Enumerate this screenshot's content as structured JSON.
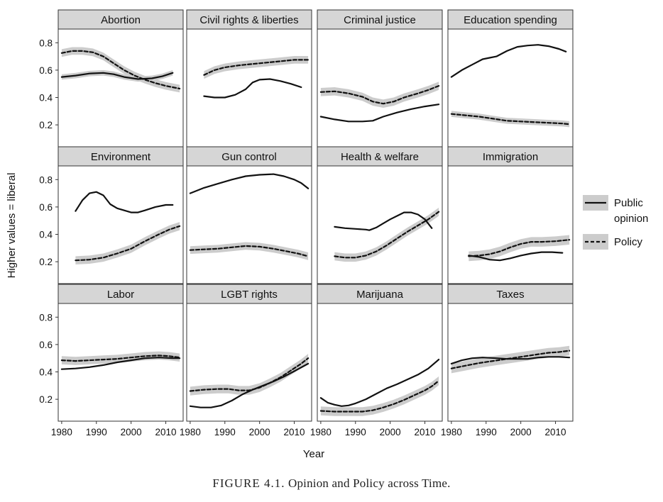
{
  "caption": {
    "label": "FIGURE 4.1.",
    "text": "Opinion and Policy across Time."
  },
  "chart_data": {
    "type": "line",
    "xlabel": "Year",
    "ylabel": "Higher values = liberal",
    "xlim": [
      1979,
      2015
    ],
    "ylim": [
      0.04,
      0.9
    ],
    "xticks": [
      1980,
      1990,
      2000,
      2010
    ],
    "yticks": [
      0.2,
      0.4,
      0.6,
      0.8
    ],
    "legend": {
      "position": "right",
      "entries": [
        {
          "key": "opinion",
          "label_lines": [
            "Public",
            "opinion"
          ],
          "style": "solid"
        },
        {
          "key": "policy",
          "label_lines": [
            "Policy"
          ],
          "style": "dashed"
        }
      ]
    },
    "colors": {
      "line": "#111111",
      "ribbon": "#cccccc",
      "strip": "#d6d6d6",
      "panel_border": "#333333"
    },
    "panels": [
      {
        "title": "Abortion",
        "opinion": [
          [
            1980,
            0.55
          ],
          [
            1984,
            0.56
          ],
          [
            1988,
            0.575
          ],
          [
            1992,
            0.58
          ],
          [
            1995,
            0.57
          ],
          [
            1998,
            0.55
          ],
          [
            2002,
            0.535
          ],
          [
            2006,
            0.54
          ],
          [
            2009,
            0.555
          ],
          [
            2012,
            0.58
          ]
        ],
        "opinion_band": 0.02,
        "policy": [
          [
            1980,
            0.725
          ],
          [
            1983,
            0.74
          ],
          [
            1986,
            0.74
          ],
          [
            1989,
            0.73
          ],
          [
            1992,
            0.7
          ],
          [
            1995,
            0.65
          ],
          [
            1998,
            0.6
          ],
          [
            2001,
            0.56
          ],
          [
            2004,
            0.53
          ],
          [
            2007,
            0.505
          ],
          [
            2010,
            0.485
          ],
          [
            2014,
            0.465
          ]
        ],
        "policy_band": 0.028
      },
      {
        "title": "Civil rights & liberties",
        "opinion": [
          [
            1984,
            0.41
          ],
          [
            1987,
            0.4
          ],
          [
            1990,
            0.4
          ],
          [
            1993,
            0.42
          ],
          [
            1996,
            0.46
          ],
          [
            1998,
            0.51
          ],
          [
            2000,
            0.53
          ],
          [
            2003,
            0.535
          ],
          [
            2006,
            0.52
          ],
          [
            2009,
            0.5
          ],
          [
            2012,
            0.475
          ]
        ],
        "opinion_band": 0.0,
        "policy": [
          [
            1984,
            0.565
          ],
          [
            1987,
            0.6
          ],
          [
            1990,
            0.62
          ],
          [
            1994,
            0.635
          ],
          [
            1998,
            0.645
          ],
          [
            2002,
            0.655
          ],
          [
            2006,
            0.665
          ],
          [
            2010,
            0.675
          ],
          [
            2014,
            0.675
          ]
        ],
        "policy_band": 0.028
      },
      {
        "title": "Criminal justice",
        "opinion": [
          [
            1980,
            0.26
          ],
          [
            1984,
            0.24
          ],
          [
            1988,
            0.225
          ],
          [
            1992,
            0.225
          ],
          [
            1995,
            0.23
          ],
          [
            1998,
            0.26
          ],
          [
            2002,
            0.29
          ],
          [
            2006,
            0.315
          ],
          [
            2010,
            0.335
          ],
          [
            2014,
            0.35
          ]
        ],
        "opinion_band": 0.0,
        "policy": [
          [
            1980,
            0.44
          ],
          [
            1984,
            0.445
          ],
          [
            1988,
            0.43
          ],
          [
            1992,
            0.405
          ],
          [
            1995,
            0.37
          ],
          [
            1998,
            0.355
          ],
          [
            2001,
            0.37
          ],
          [
            2004,
            0.4
          ],
          [
            2008,
            0.43
          ],
          [
            2011,
            0.455
          ],
          [
            2014,
            0.485
          ]
        ],
        "policy_band": 0.03
      },
      {
        "title": "Education spending",
        "opinion": [
          [
            1980,
            0.55
          ],
          [
            1983,
            0.6
          ],
          [
            1986,
            0.64
          ],
          [
            1989,
            0.68
          ],
          [
            1991,
            0.69
          ],
          [
            1993,
            0.7
          ],
          [
            1996,
            0.74
          ],
          [
            1999,
            0.77
          ],
          [
            2002,
            0.78
          ],
          [
            2005,
            0.785
          ],
          [
            2008,
            0.775
          ],
          [
            2011,
            0.755
          ],
          [
            2013,
            0.735
          ]
        ],
        "opinion_band": 0.0,
        "policy": [
          [
            1980,
            0.28
          ],
          [
            1984,
            0.27
          ],
          [
            1988,
            0.26
          ],
          [
            1992,
            0.245
          ],
          [
            1996,
            0.23
          ],
          [
            2000,
            0.225
          ],
          [
            2004,
            0.22
          ],
          [
            2008,
            0.215
          ],
          [
            2012,
            0.21
          ],
          [
            2014,
            0.205
          ]
        ],
        "policy_band": 0.022
      },
      {
        "title": "Environment",
        "opinion": [
          [
            1984,
            0.57
          ],
          [
            1986,
            0.65
          ],
          [
            1988,
            0.7
          ],
          [
            1990,
            0.71
          ],
          [
            1992,
            0.685
          ],
          [
            1994,
            0.62
          ],
          [
            1996,
            0.59
          ],
          [
            1998,
            0.575
          ],
          [
            2000,
            0.56
          ],
          [
            2002,
            0.56
          ],
          [
            2004,
            0.575
          ],
          [
            2007,
            0.6
          ],
          [
            2010,
            0.615
          ],
          [
            2012,
            0.615
          ]
        ],
        "opinion_band": 0.0,
        "policy": [
          [
            1984,
            0.21
          ],
          [
            1988,
            0.215
          ],
          [
            1992,
            0.23
          ],
          [
            1996,
            0.26
          ],
          [
            2000,
            0.295
          ],
          [
            2004,
            0.35
          ],
          [
            2008,
            0.4
          ],
          [
            2011,
            0.435
          ],
          [
            2014,
            0.46
          ]
        ],
        "policy_band": 0.03
      },
      {
        "title": "Gun control",
        "opinion": [
          [
            1980,
            0.7
          ],
          [
            1984,
            0.74
          ],
          [
            1988,
            0.77
          ],
          [
            1992,
            0.8
          ],
          [
            1996,
            0.825
          ],
          [
            2000,
            0.835
          ],
          [
            2004,
            0.84
          ],
          [
            2007,
            0.825
          ],
          [
            2010,
            0.8
          ],
          [
            2012,
            0.775
          ],
          [
            2014,
            0.735
          ]
        ],
        "opinion_band": 0.0,
        "policy": [
          [
            1980,
            0.285
          ],
          [
            1984,
            0.29
          ],
          [
            1988,
            0.295
          ],
          [
            1992,
            0.305
          ],
          [
            1996,
            0.315
          ],
          [
            2000,
            0.31
          ],
          [
            2004,
            0.295
          ],
          [
            2008,
            0.275
          ],
          [
            2011,
            0.26
          ],
          [
            2014,
            0.24
          ]
        ],
        "policy_band": 0.028
      },
      {
        "title": "Health & welfare",
        "opinion": [
          [
            1984,
            0.455
          ],
          [
            1987,
            0.445
          ],
          [
            1990,
            0.44
          ],
          [
            1993,
            0.435
          ],
          [
            1994,
            0.43
          ],
          [
            1996,
            0.45
          ],
          [
            1998,
            0.48
          ],
          [
            2000,
            0.51
          ],
          [
            2002,
            0.535
          ],
          [
            2004,
            0.56
          ],
          [
            2006,
            0.56
          ],
          [
            2008,
            0.545
          ],
          [
            2010,
            0.51
          ],
          [
            2012,
            0.445
          ]
        ],
        "opinion_band": 0.0,
        "policy": [
          [
            1984,
            0.24
          ],
          [
            1987,
            0.23
          ],
          [
            1990,
            0.23
          ],
          [
            1993,
            0.245
          ],
          [
            1996,
            0.275
          ],
          [
            1999,
            0.32
          ],
          [
            2002,
            0.37
          ],
          [
            2005,
            0.42
          ],
          [
            2008,
            0.465
          ],
          [
            2011,
            0.51
          ],
          [
            2014,
            0.565
          ]
        ],
        "policy_band": 0.03
      },
      {
        "title": "Immigration",
        "opinion": [
          [
            1985,
            0.245
          ],
          [
            1988,
            0.235
          ],
          [
            1991,
            0.215
          ],
          [
            1994,
            0.21
          ],
          [
            1997,
            0.225
          ],
          [
            2000,
            0.245
          ],
          [
            2003,
            0.26
          ],
          [
            2006,
            0.27
          ],
          [
            2009,
            0.27
          ],
          [
            2012,
            0.265
          ]
        ],
        "opinion_band": 0.0,
        "policy": [
          [
            1985,
            0.24
          ],
          [
            1988,
            0.245
          ],
          [
            1991,
            0.255
          ],
          [
            1994,
            0.275
          ],
          [
            1997,
            0.305
          ],
          [
            2000,
            0.33
          ],
          [
            2003,
            0.345
          ],
          [
            2006,
            0.345
          ],
          [
            2010,
            0.35
          ],
          [
            2014,
            0.36
          ]
        ],
        "policy_band": 0.035
      },
      {
        "title": "Labor",
        "opinion": [
          [
            1980,
            0.42
          ],
          [
            1984,
            0.425
          ],
          [
            1988,
            0.435
          ],
          [
            1992,
            0.45
          ],
          [
            1996,
            0.47
          ],
          [
            2000,
            0.485
          ],
          [
            2004,
            0.5
          ],
          [
            2008,
            0.505
          ],
          [
            2012,
            0.5
          ],
          [
            2014,
            0.5
          ]
        ],
        "opinion_band": 0.0,
        "policy": [
          [
            1980,
            0.485
          ],
          [
            1984,
            0.48
          ],
          [
            1988,
            0.485
          ],
          [
            1992,
            0.49
          ],
          [
            1996,
            0.495
          ],
          [
            2000,
            0.505
          ],
          [
            2004,
            0.515
          ],
          [
            2008,
            0.52
          ],
          [
            2011,
            0.515
          ],
          [
            2014,
            0.505
          ]
        ],
        "policy_band": 0.03
      },
      {
        "title": "LGBT rights",
        "opinion": [
          [
            1980,
            0.15
          ],
          [
            1983,
            0.14
          ],
          [
            1986,
            0.14
          ],
          [
            1989,
            0.155
          ],
          [
            1992,
            0.19
          ],
          [
            1995,
            0.235
          ],
          [
            1998,
            0.27
          ],
          [
            2001,
            0.3
          ],
          [
            2004,
            0.33
          ],
          [
            2007,
            0.365
          ],
          [
            2010,
            0.405
          ],
          [
            2014,
            0.46
          ]
        ],
        "opinion_band": 0.0,
        "policy": [
          [
            1980,
            0.26
          ],
          [
            1984,
            0.27
          ],
          [
            1988,
            0.275
          ],
          [
            1991,
            0.275
          ],
          [
            1994,
            0.265
          ],
          [
            1997,
            0.265
          ],
          [
            2000,
            0.285
          ],
          [
            2003,
            0.32
          ],
          [
            2006,
            0.36
          ],
          [
            2009,
            0.41
          ],
          [
            2012,
            0.46
          ],
          [
            2014,
            0.5
          ]
        ],
        "policy_band": 0.032
      },
      {
        "title": "Marijuana",
        "opinion": [
          [
            1980,
            0.21
          ],
          [
            1982,
            0.175
          ],
          [
            1984,
            0.16
          ],
          [
            1986,
            0.15
          ],
          [
            1988,
            0.155
          ],
          [
            1990,
            0.17
          ],
          [
            1993,
            0.2
          ],
          [
            1996,
            0.24
          ],
          [
            1999,
            0.28
          ],
          [
            2002,
            0.31
          ],
          [
            2005,
            0.345
          ],
          [
            2008,
            0.38
          ],
          [
            2011,
            0.425
          ],
          [
            2014,
            0.49
          ]
        ],
        "opinion_band": 0.0,
        "policy": [
          [
            1980,
            0.115
          ],
          [
            1984,
            0.11
          ],
          [
            1988,
            0.11
          ],
          [
            1992,
            0.11
          ],
          [
            1995,
            0.12
          ],
          [
            1998,
            0.14
          ],
          [
            2001,
            0.165
          ],
          [
            2004,
            0.195
          ],
          [
            2007,
            0.23
          ],
          [
            2010,
            0.265
          ],
          [
            2012,
            0.295
          ],
          [
            2014,
            0.335
          ]
        ],
        "policy_band": 0.032
      },
      {
        "title": "Taxes",
        "opinion": [
          [
            1980,
            0.46
          ],
          [
            1983,
            0.485
          ],
          [
            1986,
            0.5
          ],
          [
            1989,
            0.505
          ],
          [
            1993,
            0.5
          ],
          [
            1996,
            0.495
          ],
          [
            1999,
            0.495
          ],
          [
            2002,
            0.495
          ],
          [
            2005,
            0.505
          ],
          [
            2008,
            0.51
          ],
          [
            2011,
            0.51
          ],
          [
            2014,
            0.505
          ]
        ],
        "opinion_band": 0.0,
        "policy": [
          [
            1980,
            0.425
          ],
          [
            1984,
            0.445
          ],
          [
            1988,
            0.465
          ],
          [
            1992,
            0.48
          ],
          [
            1996,
            0.495
          ],
          [
            2000,
            0.51
          ],
          [
            2004,
            0.525
          ],
          [
            2008,
            0.54
          ],
          [
            2011,
            0.545
          ],
          [
            2014,
            0.555
          ]
        ],
        "policy_band": 0.035
      }
    ]
  }
}
